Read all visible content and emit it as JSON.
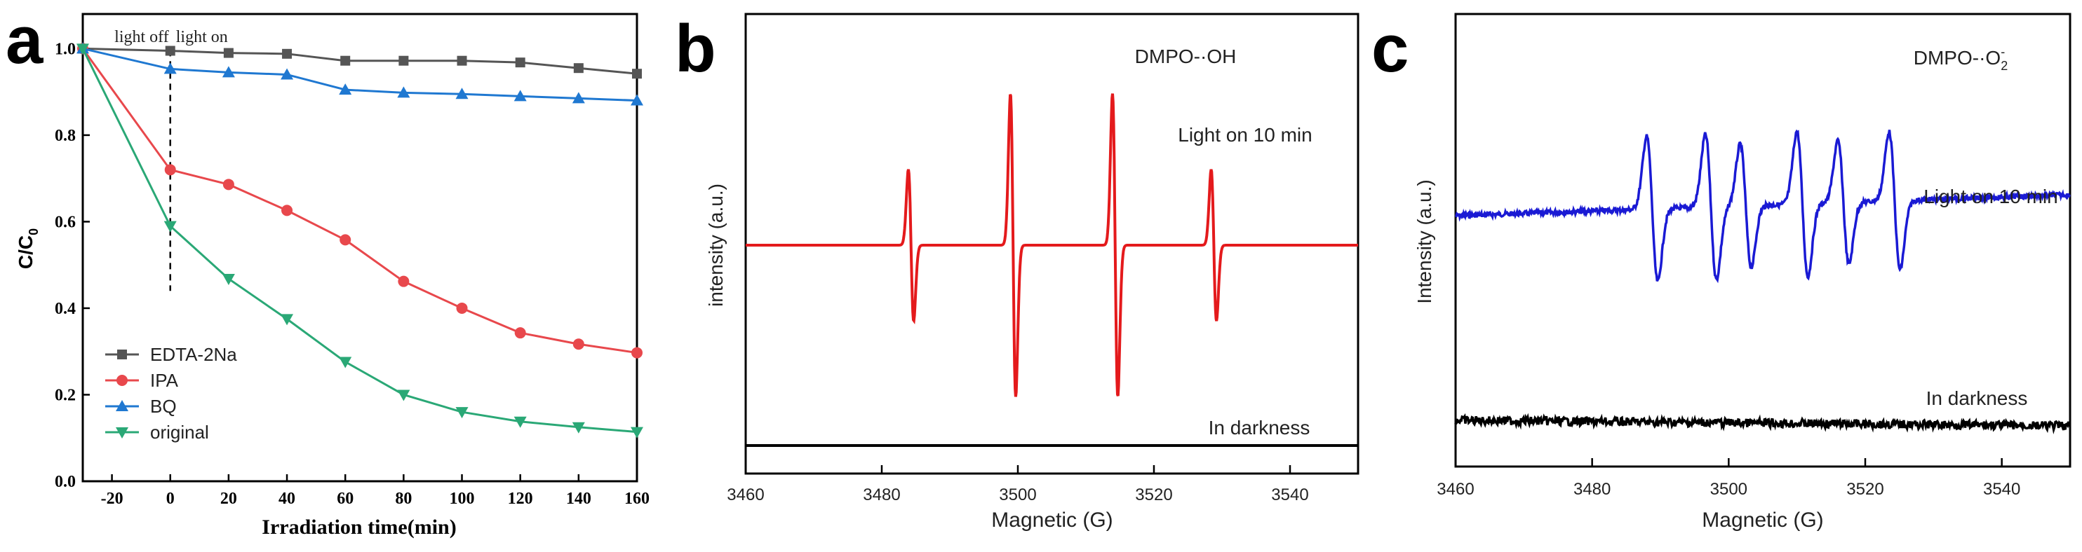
{
  "chart_data": [
    {
      "panel": "a",
      "type": "line",
      "xlabel": "Irradiation time(min)",
      "ylabel": "C/C",
      "ylabel_sub": "0",
      "xlim": [
        -30,
        160
      ],
      "ylim": [
        0,
        1.08
      ],
      "xticks": [
        -20,
        0,
        20,
        40,
        60,
        80,
        100,
        120,
        140,
        160
      ],
      "yticks": [
        0.0,
        0.2,
        0.4,
        0.6,
        0.8,
        1.0
      ],
      "annotation": {
        "left": "light off",
        "right": "light on",
        "x": 0
      },
      "legend_position": "bottom-left",
      "series": [
        {
          "name": "EDTA-2Na",
          "color": "#555555",
          "marker": "square",
          "x": [
            -30,
            0,
            20,
            40,
            60,
            80,
            100,
            120,
            140,
            160
          ],
          "y": [
            1.0,
            0.995,
            0.99,
            0.988,
            0.972,
            0.972,
            0.972,
            0.968,
            0.955,
            0.942
          ]
        },
        {
          "name": "IPA",
          "color": "#e8484c",
          "marker": "circle",
          "x": [
            -30,
            0,
            20,
            40,
            60,
            80,
            100,
            120,
            140,
            160
          ],
          "y": [
            1.0,
            0.72,
            0.686,
            0.626,
            0.558,
            0.462,
            0.4,
            0.343,
            0.317,
            0.297
          ]
        },
        {
          "name": "BQ",
          "color": "#1f78d1",
          "marker": "triangle-up",
          "x": [
            -30,
            0,
            20,
            40,
            60,
            80,
            100,
            120,
            140,
            160
          ],
          "y": [
            1.0,
            0.953,
            0.945,
            0.94,
            0.905,
            0.898,
            0.895,
            0.89,
            0.885,
            0.88
          ]
        },
        {
          "name": "original",
          "color": "#2aa876",
          "marker": "triangle-down",
          "x": [
            -30,
            0,
            20,
            40,
            60,
            80,
            100,
            120,
            140,
            160
          ],
          "y": [
            1.0,
            0.59,
            0.468,
            0.375,
            0.276,
            0.2,
            0.16,
            0.138,
            0.125,
            0.114
          ]
        }
      ]
    },
    {
      "panel": "b",
      "type": "line",
      "xlabel": "Magnetic (G)",
      "ylabel": "intensity (a.u.)",
      "xlim": [
        3460,
        3550
      ],
      "xticks": [
        3460,
        3480,
        3500,
        3520,
        3540
      ],
      "species": "DMPO-·OH",
      "series": [
        {
          "name": "Light on 10 min",
          "color": "#e41a1c",
          "type": "EPR quartet (1:2:2:1)",
          "peaks": [
            {
              "center": 3484.3,
              "rel_amplitude": 1
            },
            {
              "center": 3499.3,
              "rel_amplitude": 2
            },
            {
              "center": 3514.3,
              "rel_amplitude": 2
            },
            {
              "center": 3528.8,
              "rel_amplitude": 1
            }
          ]
        },
        {
          "name": "In darkness",
          "color": "#000000",
          "type": "flat baseline"
        }
      ]
    },
    {
      "panel": "c",
      "type": "line",
      "xlabel": "Magnetic (G)",
      "ylabel": "Intensity (a.u.)",
      "xlim": [
        3460,
        3550
      ],
      "xticks": [
        3460,
        3480,
        3500,
        3520,
        3540
      ],
      "species": "DMPO-·O",
      "species_sub": "2",
      "species_sup": "-",
      "series": [
        {
          "name": "Light on 10 min",
          "color": "#1a1ad4",
          "type": "EPR sextet",
          "peaks": [
            {
              "center": 3488.8,
              "rel_amplitude": 1.0
            },
            {
              "center": 3497.4,
              "rel_amplitude": 1.0
            },
            {
              "center": 3502.5,
              "rel_amplitude": 0.85
            },
            {
              "center": 3510.8,
              "rel_amplitude": 1.0
            },
            {
              "center": 3516.8,
              "rel_amplitude": 0.85
            },
            {
              "center": 3524.3,
              "rel_amplitude": 0.95
            }
          ]
        },
        {
          "name": "In darkness",
          "color": "#000000",
          "type": "noisy baseline"
        }
      ]
    }
  ],
  "panel_labels": [
    "a",
    "b",
    "c"
  ]
}
